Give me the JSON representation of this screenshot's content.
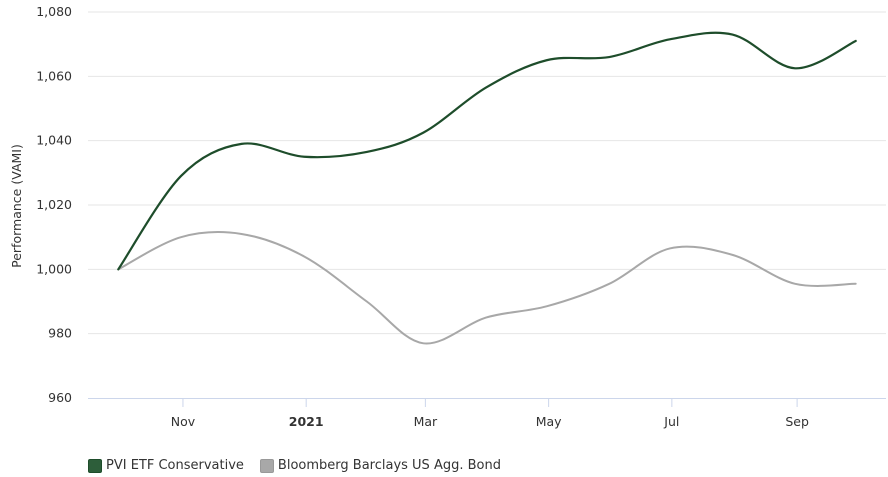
{
  "colors": {
    "series_0": "#1e4d2b",
    "series_1": "#a8a8a8",
    "grid": "#e6e6e6",
    "axis": "#ccd6eb"
  },
  "chart_data": {
    "type": "line",
    "title": "",
    "xlabel": "",
    "ylabel": "Performance (VAMI)",
    "ylim": [
      960,
      1080
    ],
    "yticks": [
      960,
      980,
      1000,
      1020,
      1040,
      1060,
      1080
    ],
    "ytick_labels": [
      "960",
      "980",
      "1,000",
      "1,020",
      "1,040",
      "1,060",
      "1,080"
    ],
    "xlim": [
      "2020-09-15",
      "2021-10-15"
    ],
    "xticks": [
      {
        "date": "2020-11-01",
        "label": "Nov",
        "bold": false
      },
      {
        "date": "2021-01-01",
        "label": "2021",
        "bold": true
      },
      {
        "date": "2021-03-01",
        "label": "Mar",
        "bold": false
      },
      {
        "date": "2021-05-01",
        "label": "May",
        "bold": false
      },
      {
        "date": "2021-07-01",
        "label": "Jul",
        "bold": false
      },
      {
        "date": "2021-09-01",
        "label": "Sep",
        "bold": false
      }
    ],
    "grid": true,
    "legend_position": "bottom-left",
    "x": [
      "2020-09-30",
      "2020-10-31",
      "2020-11-30",
      "2020-12-31",
      "2021-01-31",
      "2021-02-28",
      "2021-03-31",
      "2021-04-30",
      "2021-05-31",
      "2021-06-30",
      "2021-07-31",
      "2021-08-31",
      "2021-09-30"
    ],
    "series": [
      {
        "name": "PVI ETF Conservative",
        "values": [
          1000,
          1029,
          1039,
          1035,
          1036.5,
          1042.5,
          1056.5,
          1065,
          1066,
          1071.5,
          1073,
          1062.5,
          1071
        ]
      },
      {
        "name": "Bloomberg Barclays US Agg. Bond",
        "values": [
          1000,
          1010,
          1011,
          1004,
          990,
          977,
          985,
          988.5,
          995.5,
          1006.5,
          1004.5,
          995.5,
          995.5
        ]
      }
    ]
  }
}
